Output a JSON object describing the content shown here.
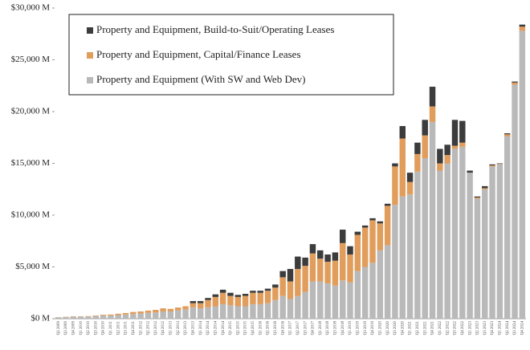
{
  "chart_data": {
    "type": "stacked_bar",
    "categories": [
      "Q2 2009",
      "Q3 2009",
      "Q4 2009",
      "Q1 2010",
      "Q2 2010",
      "Q3 2010",
      "Q4 2010",
      "Q1 2011",
      "Q2 2011",
      "Q3 2011",
      "Q4 2011",
      "Q1 2012",
      "Q2 2012",
      "Q3 2012",
      "Q4 2012",
      "Q1 2013",
      "Q2 2013",
      "Q3 2013",
      "Q4 2013",
      "Q1 2014",
      "Q2 2014",
      "Q3 2014",
      "Q4 2014",
      "Q1 2015",
      "Q2 2015",
      "Q3 2015",
      "Q4 2015",
      "Q1 2016",
      "Q2 2016",
      "Q3 2016",
      "Q4 2016",
      "Q1 2017",
      "Q2 2017",
      "Q3 2017",
      "Q4 2017",
      "Q1 2018",
      "Q2 2018",
      "Q3 2018",
      "Q4 2018",
      "Q1 2019",
      "Q2 2019",
      "Q3 2019",
      "Q4 2019",
      "Q1 2020",
      "Q2 2020",
      "Q3 2020",
      "Q4 2020",
      "Q1 2021",
      "Q2 2021",
      "Q3 2021",
      "Q4 2021",
      "Q1 2022",
      "Q2 2022",
      "Q3 2022",
      "Q4 2022",
      "Q1 2023",
      "Q2 2023",
      "Q3 2023",
      "Q4 2023",
      "Q1 2024",
      "Q2 2024",
      "Q3 2024",
      "Q4 2024"
    ],
    "series": [
      {
        "name": "Property and Equipment, Build-to-Suit/Operating Leases",
        "color": "#3c3c3c",
        "values": [
          0,
          0,
          0,
          0,
          0,
          0,
          0,
          0,
          0,
          0,
          0,
          0,
          0,
          0,
          0,
          0,
          0,
          0,
          200,
          200,
          200,
          250,
          300,
          300,
          200,
          200,
          200,
          200,
          200,
          300,
          600,
          1200,
          1200,
          800,
          900,
          800,
          700,
          800,
          1300,
          800,
          300,
          200,
          200,
          200,
          200,
          300,
          1200,
          900,
          1100,
          1500,
          1900,
          1400,
          1000,
          2500,
          2100,
          200,
          100,
          200,
          100,
          50,
          100,
          100,
          200
        ]
      },
      {
        "name": "Property and Equipment, Capital/Finance Leases",
        "color": "#e09d5c",
        "values": [
          20,
          20,
          30,
          30,
          40,
          50,
          80,
          100,
          130,
          150,
          200,
          200,
          220,
          250,
          300,
          250,
          280,
          300,
          400,
          500,
          700,
          900,
          1100,
          900,
          900,
          1000,
          1100,
          1100,
          1200,
          1200,
          1800,
          1700,
          2600,
          2500,
          2700,
          2200,
          2100,
          2400,
          3600,
          2700,
          3500,
          3800,
          4100,
          2600,
          3800,
          3700,
          5600,
          1200,
          1700,
          2200,
          1500,
          700,
          800,
          300,
          400,
          0,
          100,
          100,
          100,
          50,
          200,
          200,
          400
        ]
      },
      {
        "name": "Property and Equipment (With SW and Web Dev)",
        "color": "#b9b9b9",
        "values": [
          130,
          170,
          200,
          200,
          210,
          260,
          300,
          300,
          350,
          400,
          450,
          500,
          560,
          600,
          700,
          700,
          800,
          900,
          1100,
          1000,
          1100,
          1200,
          1400,
          1300,
          1200,
          1200,
          1400,
          1400,
          1500,
          1800,
          2200,
          1900,
          2200,
          2600,
          3600,
          3600,
          3400,
          3200,
          3700,
          3500,
          4600,
          5000,
          5400,
          6600,
          7100,
          11000,
          11800,
          12000,
          14200,
          15500,
          19000,
          14300,
          15000,
          16400,
          16600,
          14100,
          11600,
          12500,
          14700,
          14900,
          17600,
          22600,
          27800
        ]
      }
    ],
    "ylim": [
      0,
      30000
    ],
    "yticks": [
      {
        "value": 0,
        "label": "$0 M"
      },
      {
        "value": 5000,
        "label": "$5,000 M"
      },
      {
        "value": 10000,
        "label": "$10,000 M"
      },
      {
        "value": 15000,
        "label": "$15,000 M"
      },
      {
        "value": 20000,
        "label": "$20,000 M"
      },
      {
        "value": 25000,
        "label": "$25,000 M"
      },
      {
        "value": 30000,
        "label": "$30,000 M"
      }
    ],
    "grid": false
  }
}
